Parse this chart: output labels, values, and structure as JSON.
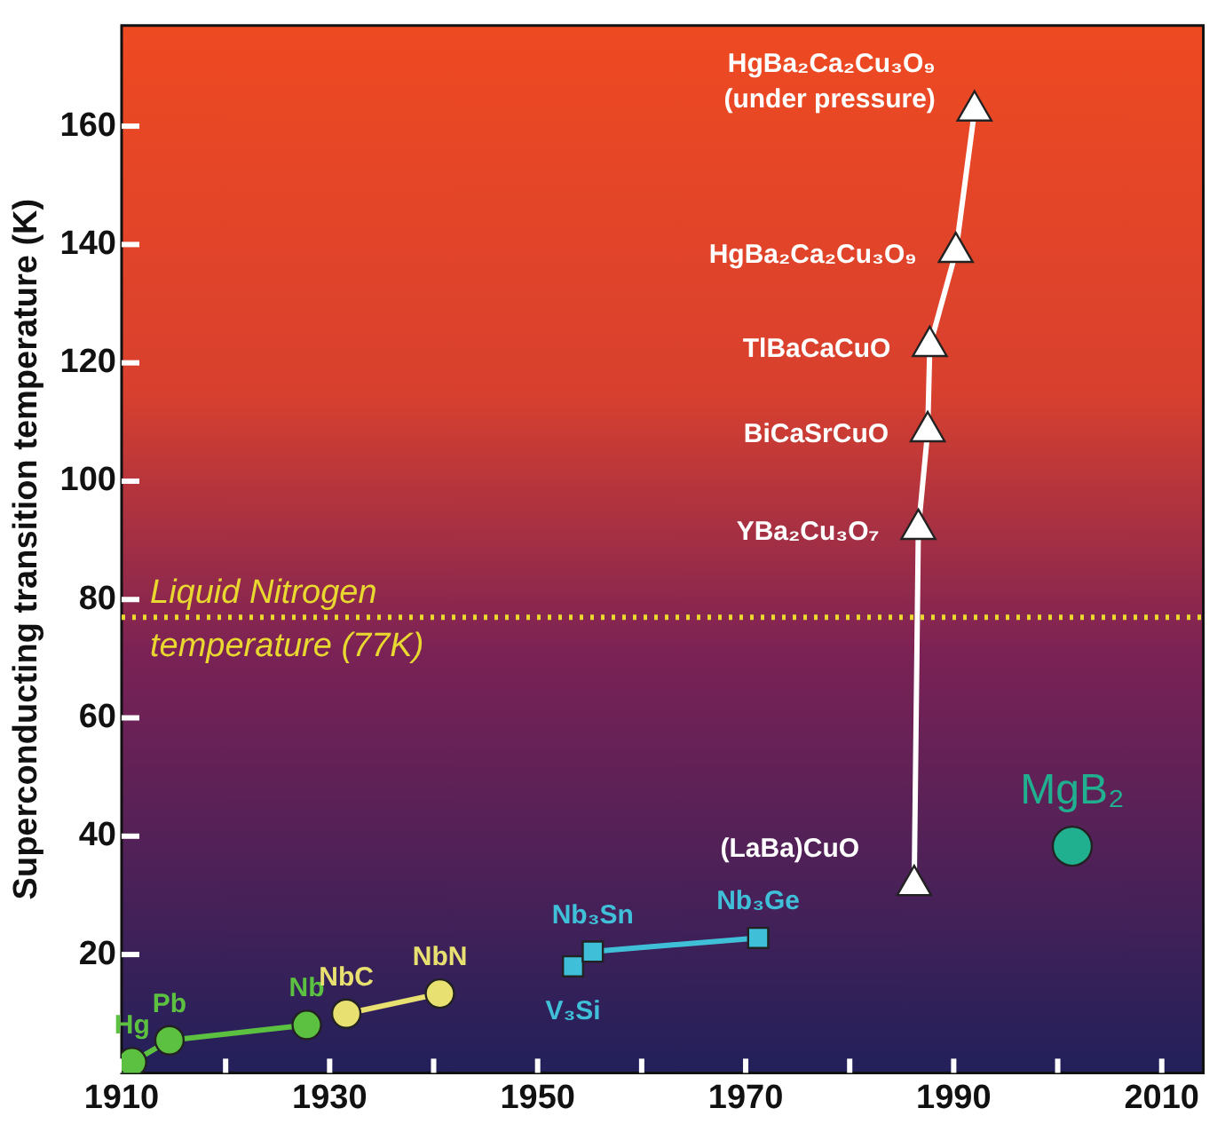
{
  "chart_data": {
    "type": "line",
    "ylabel": "Superconducting transition temperature (K)",
    "xlim": [
      1910,
      2014
    ],
    "xticks": [
      1910,
      {
        "value": 1920,
        "label": null
      },
      1930,
      {
        "value": 1940,
        "label": null
      },
      1950,
      {
        "value": 1960,
        "label": null
      },
      1970,
      {
        "value": 1980,
        "label": null
      },
      1990,
      {
        "value": 2000,
        "label": null
      },
      2010
    ],
    "ylim": [
      0,
      177
    ],
    "yticks": [
      20,
      40,
      60,
      80,
      100,
      120,
      140,
      160
    ],
    "grid": false,
    "legend": false,
    "series": [
      {
        "color": "#5cc040",
        "marker": "circle",
        "x": [
          1911,
          1914.6,
          1927.8
        ],
        "values": [
          1.8,
          5.5,
          8.1
        ]
      },
      {
        "color": "#e8e070",
        "marker": "circle",
        "x": [
          1931.6,
          1940.6
        ],
        "values": [
          10,
          13.4
        ]
      },
      {
        "color": "#40c0d8",
        "marker": "square",
        "x": [
          1953.4,
          1955.3,
          1971.2
        ],
        "values": [
          18,
          20.5,
          22.8
        ]
      },
      {
        "color": "#ffffff",
        "marker": "triangle",
        "x": [
          1986.2,
          1986.6,
          1987.5,
          1987.7,
          1990.2,
          1992
        ],
        "values": [
          31.7,
          91.9,
          108.4,
          122.8,
          138.7,
          162.6
        ]
      },
      {
        "type": "scatter",
        "color": "#20b090",
        "marker": "circle",
        "x": [
          2001.4
        ],
        "values": [
          38.3
        ]
      }
    ],
    "ref_lines": [
      {
        "axis": "y",
        "value": 77,
        "label": "Liquid Nitrogen temperature (77K)",
        "color": "#e8d830",
        "line_style": "dotted"
      }
    ],
    "annotations": [
      {
        "text": "Hg",
        "x": 1911,
        "y": 1.8
      },
      {
        "text": "Pb",
        "x": 1914.6,
        "y": 5.5
      },
      {
        "text": "Nb",
        "x": 1927.8,
        "y": 8.1
      },
      {
        "text": "NbC",
        "x": 1931.6,
        "y": 10
      },
      {
        "text": "NbN",
        "x": 1940.6,
        "y": 13.4
      },
      {
        "text": "V₃Si",
        "x": 1953.4,
        "y": 18
      },
      {
        "text": "Nb₃Sn",
        "x": 1955.3,
        "y": 20.5
      },
      {
        "text": "Nb₃Ge",
        "x": 1971.2,
        "y": 22.8
      },
      {
        "text": "(LaBa)CuO",
        "x": 1986.2,
        "y": 31.7
      },
      {
        "text": "YBa₂Cu₃O₇",
        "x": 1986.6,
        "y": 91.9
      },
      {
        "text": "BiCaSrCuO",
        "x": 1987.5,
        "y": 108.4
      },
      {
        "text": "TlBaCaCuO",
        "x": 1987.7,
        "y": 122.8
      },
      {
        "text": "HgBa₂Ca₂Cu₃O₉",
        "x": 1990.2,
        "y": 138.7
      },
      {
        "text": "HgBa₂Ca₂Cu₃O₉ (under pressure)",
        "x": 1992,
        "y": 162.6
      },
      {
        "text": "MgB₂",
        "x": 2001.4,
        "y": 38.3
      }
    ]
  }
}
